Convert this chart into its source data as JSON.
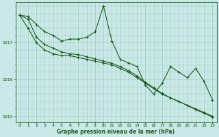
{
  "background_color": "#cbe8e8",
  "plot_background": "#cbe8e8",
  "line_color": "#1a5c1a",
  "grid_color": "#99ccbb",
  "xlabel": "Graphe pression niveau de la mer (hPa)",
  "ylim": [
    1014.85,
    1018.1
  ],
  "xlim": [
    -0.5,
    23.5
  ],
  "yticks": [
    1015,
    1016,
    1017
  ],
  "xticks": [
    0,
    1,
    2,
    3,
    4,
    5,
    6,
    7,
    8,
    9,
    10,
    11,
    12,
    13,
    14,
    15,
    16,
    17,
    18,
    19,
    20,
    21,
    22,
    23
  ],
  "series": [
    [
      1017.75,
      1017.72,
      1017.5,
      1017.3,
      1017.2,
      1017.05,
      1017.1,
      1017.1,
      1017.15,
      1017.3,
      1018.0,
      1017.05,
      1016.55,
      1016.45,
      1016.35,
      1015.85,
      1015.6,
      1015.9,
      1016.35,
      1016.2,
      1016.05,
      1016.3,
      1015.95,
      1015.45
    ],
    [
      1017.75,
      1017.4,
      1017.0,
      1016.8,
      1016.7,
      1016.65,
      1016.65,
      1016.6,
      1016.55,
      1016.5,
      1016.45,
      1016.4,
      1016.3,
      1016.2,
      1016.05,
      1015.9,
      1015.75,
      1015.6,
      1015.5,
      1015.4,
      1015.3,
      1015.2,
      1015.1,
      1015.0
    ],
    [
      1017.75,
      1017.65,
      1017.15,
      1016.95,
      1016.85,
      1016.75,
      1016.7,
      1016.68,
      1016.62,
      1016.56,
      1016.5,
      1016.44,
      1016.35,
      1016.24,
      1016.1,
      1015.93,
      1015.77,
      1015.62,
      1015.5,
      1015.4,
      1015.29,
      1015.18,
      1015.08,
      1014.98
    ]
  ]
}
